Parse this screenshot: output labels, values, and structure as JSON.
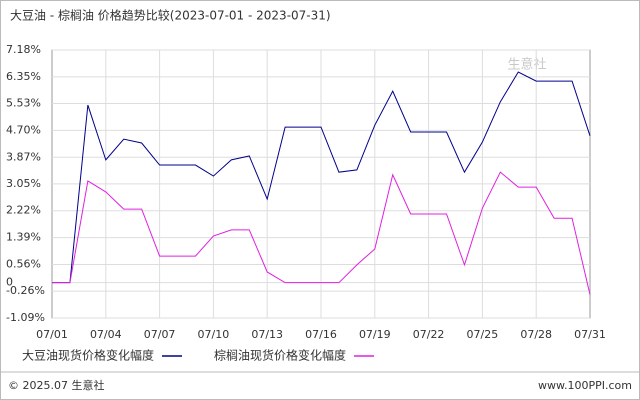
{
  "chart_data": {
    "type": "line",
    "title": "大豆油 - 棕榈油 价格趋势比较(2023-07-01 - 2023-07-31)",
    "watermark": "生意社",
    "categories": [
      "07/01",
      null,
      null,
      "07/04",
      null,
      null,
      "07/07",
      null,
      null,
      "07/10",
      null,
      null,
      "07/13",
      null,
      null,
      "07/16",
      null,
      null,
      "07/19",
      null,
      null,
      "07/22",
      null,
      null,
      "07/25",
      null,
      null,
      "07/28",
      null,
      null,
      "07/31"
    ],
    "series": [
      {
        "name": "大豆油现货价格变化幅度",
        "color": "#00008b",
        "values": [
          0,
          0,
          5.48,
          3.79,
          4.43,
          4.31,
          3.63,
          3.63,
          3.63,
          3.29,
          3.79,
          3.91,
          2.58,
          4.8,
          4.8,
          4.8,
          3.41,
          3.48,
          4.86,
          5.91,
          4.65,
          4.65,
          4.65,
          3.41,
          4.34,
          5.58,
          6.5,
          6.22,
          6.22,
          6.22,
          4.53
        ]
      },
      {
        "name": "棕榈油现货价格变化幅度",
        "color": "#e020e0",
        "values": [
          0,
          0,
          3.14,
          2.8,
          2.27,
          2.27,
          0.82,
          0.82,
          0.82,
          1.44,
          1.63,
          1.63,
          0.33,
          0,
          0,
          0,
          0,
          0.55,
          1.04,
          3.33,
          2.12,
          2.12,
          2.12,
          0.55,
          2.3,
          3.41,
          2.95,
          2.95,
          1.99,
          1.99,
          -0.37
        ]
      }
    ],
    "ylim": [
      -1.09,
      7.18
    ],
    "yticks": [
      {
        "value": 7.18,
        "label": "7.18%"
      },
      {
        "value": 6.35,
        "label": "6.35%"
      },
      {
        "value": 5.53,
        "label": "5.53%"
      },
      {
        "value": 4.7,
        "label": "4.70%"
      },
      {
        "value": 3.87,
        "label": "3.87%"
      },
      {
        "value": 3.05,
        "label": "3.05%"
      },
      {
        "value": 2.22,
        "label": "2.22%"
      },
      {
        "value": 1.39,
        "label": "1.39%"
      },
      {
        "value": 0.56,
        "label": "0.56%"
      },
      0,
      {
        "value": -0.26,
        "label": "-0.26%"
      },
      {
        "value": -1.09,
        "label": "-1.09%"
      }
    ],
    "grid": true,
    "footer_left": "© 2025.07 生意社",
    "footer_right": "www.100PPI.com"
  }
}
